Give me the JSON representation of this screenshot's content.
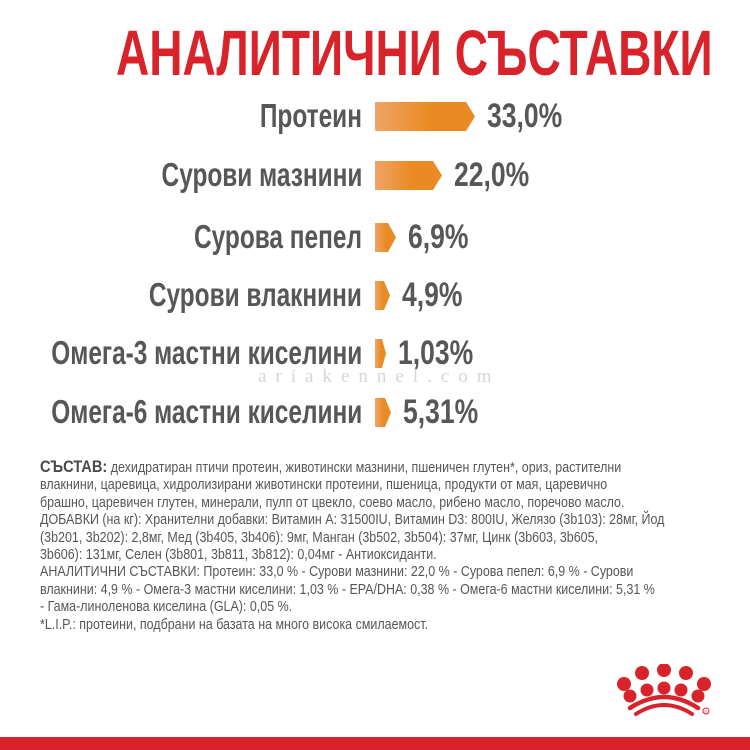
{
  "title": "АНАЛИТИЧНИ СЪСТАВКИ",
  "colors": {
    "title_red": "#d8232a",
    "bar_orange_start": "#f0a468",
    "bar_orange_end": "#ea8a22",
    "text_gray": "#575757",
    "footer_red": "#d8232a"
  },
  "chart_data": {
    "type": "bar",
    "orientation": "horizontal",
    "title": "АНАЛИТИЧНИ СЪСТАВКИ",
    "categories": [
      "Протеин",
      "Сурови мазнини",
      "Сурова пепел",
      "Сурови влакнини",
      "Омега-3 мастни киселини",
      "Омега-6 мастни киселини"
    ],
    "values": [
      33.0,
      22.0,
      6.9,
      4.9,
      1.03,
      5.31
    ],
    "value_labels": [
      "33,0%",
      "22,0%",
      "6,9%",
      "4,9%",
      "1,03%",
      "5,31%"
    ],
    "unit": "%",
    "xlabel": "",
    "ylabel": "",
    "grid": false,
    "legend": "none"
  },
  "rows": [
    {
      "label": "Протеин",
      "value": "33,0%"
    },
    {
      "label": "Сурови мазнини",
      "value": "22,0%"
    },
    {
      "label": "Сурова пепел",
      "value": "6,9%"
    },
    {
      "label": "Сурови влакнини",
      "value": "4,9%"
    },
    {
      "label": "Омега-3 мастни киселини",
      "value": "1,03%"
    },
    {
      "label": "Омега-6 мастни киселини",
      "value": "5,31%"
    }
  ],
  "watermark": "ariakennel.com",
  "composition": {
    "heading": "СЪСТАВ:",
    "lines": [
      " дехидратиран птичи протеин, животински мазнини, пшеничен глутен*, ориз, растителни",
      "влакнини, царевица, хидролизирани животински протеини, пшеница, продукти от мая, царевично",
      "брашно, царевичен глутен, минерали, пулп от цвекло, соево масло, рибено масло, поречово масло.",
      "ДОБАВКИ (на кг): Хранителни добавки: Витамин A: 31500IU, Витамин D3: 800IU, Желязо (3b103): 28мг, Йод",
      "(3b201, 3b202): 2,8мг, Мед (3b405, 3b406): 9мг, Манган (3b502, 3b504): 37мг, Цинк (3b603, 3b605,",
      "3b606): 131мг, Селен (3b801, 3b811, 3b812): 0,04мг - Антиоксиданти.",
      "АНАЛИТИЧНИ СЪСТАВКИ: Протеин: 33,0 % - Сурови мазнини: 22,0 % - Сурова пепел: 6,9 % - Сурови",
      "влакнини: 4,9 % - Омега-3 мастни киселини: 1,03 % - EPA/DHA: 0,38 % - Омега-6 мастни киселини: 5,31 %",
      "- Гама-линоленова киселина (GLA): 0,05 %.",
      "*L.I.P.: протеини, подбрани на базата на много висока смилаемост."
    ]
  },
  "logo": {
    "icon": "royal-canin-crown-icon",
    "mark": "®"
  }
}
